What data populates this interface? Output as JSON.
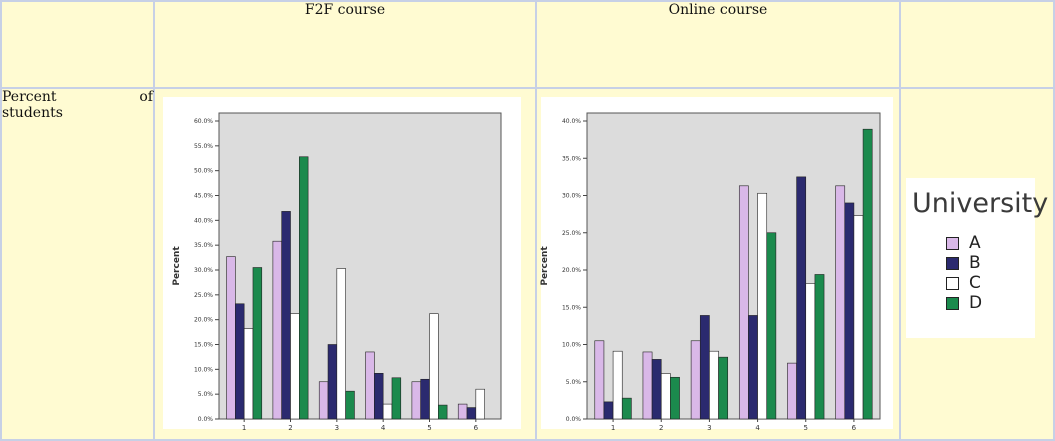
{
  "table": {
    "header": [
      "",
      "F2F course",
      "Online course",
      ""
    ],
    "row_label_1": "Percent",
    "row_label_of": "of",
    "row_label_2": "students"
  },
  "legend": {
    "title": "University",
    "items": [
      {
        "label": "A",
        "color": "#d9b8e8"
      },
      {
        "label": "B",
        "color": "#2b2a6f"
      },
      {
        "label": "C",
        "color": "#ffffff"
      },
      {
        "label": "D",
        "color": "#1b8a4d"
      }
    ]
  },
  "chart_data": [
    {
      "type": "bar",
      "title": "F2F course",
      "ylabel": "Percent",
      "xlabel": "",
      "categories": [
        "1",
        "2",
        "3",
        "4",
        "5",
        "6"
      ],
      "yticks": [
        "0.0%",
        "5.0%",
        "10.0%",
        "15.0%",
        "20.0%",
        "25.0%",
        "30.0%",
        "35.0%",
        "40.0%",
        "45.0%",
        "50.0%",
        "55.0%",
        "60.0%"
      ],
      "ylim": [
        0,
        60
      ],
      "series": [
        {
          "name": "A",
          "values": [
            32.7,
            35.8,
            7.5,
            13.5,
            7.5,
            3.0
          ]
        },
        {
          "name": "B",
          "values": [
            23.2,
            41.8,
            15.0,
            9.2,
            8.0,
            2.3
          ]
        },
        {
          "name": "C",
          "values": [
            18.2,
            21.2,
            30.3,
            3.0,
            21.2,
            6.0
          ]
        },
        {
          "name": "D",
          "values": [
            30.5,
            52.8,
            5.6,
            8.3,
            2.8,
            0.0
          ]
        }
      ],
      "legend_position": "right",
      "grid": false
    },
    {
      "type": "bar",
      "title": "Online course",
      "ylabel": "Percent",
      "xlabel": "",
      "categories": [
        "1",
        "2",
        "3",
        "4",
        "5",
        "6"
      ],
      "yticks": [
        "0.0%",
        "5.0%",
        "10.0%",
        "15.0%",
        "20.0%",
        "25.0%",
        "30.0%",
        "35.0%",
        "40.0%"
      ],
      "ylim": [
        0,
        40
      ],
      "series": [
        {
          "name": "A",
          "values": [
            10.5,
            9.0,
            10.5,
            31.3,
            7.5,
            31.3
          ]
        },
        {
          "name": "B",
          "values": [
            2.3,
            8.0,
            13.9,
            13.9,
            32.5,
            29.0
          ]
        },
        {
          "name": "C",
          "values": [
            9.1,
            6.1,
            9.1,
            30.3,
            18.2,
            27.3
          ]
        },
        {
          "name": "D",
          "values": [
            2.8,
            5.6,
            8.3,
            25.0,
            19.4,
            38.9
          ]
        }
      ],
      "legend_position": "right",
      "grid": false
    }
  ]
}
